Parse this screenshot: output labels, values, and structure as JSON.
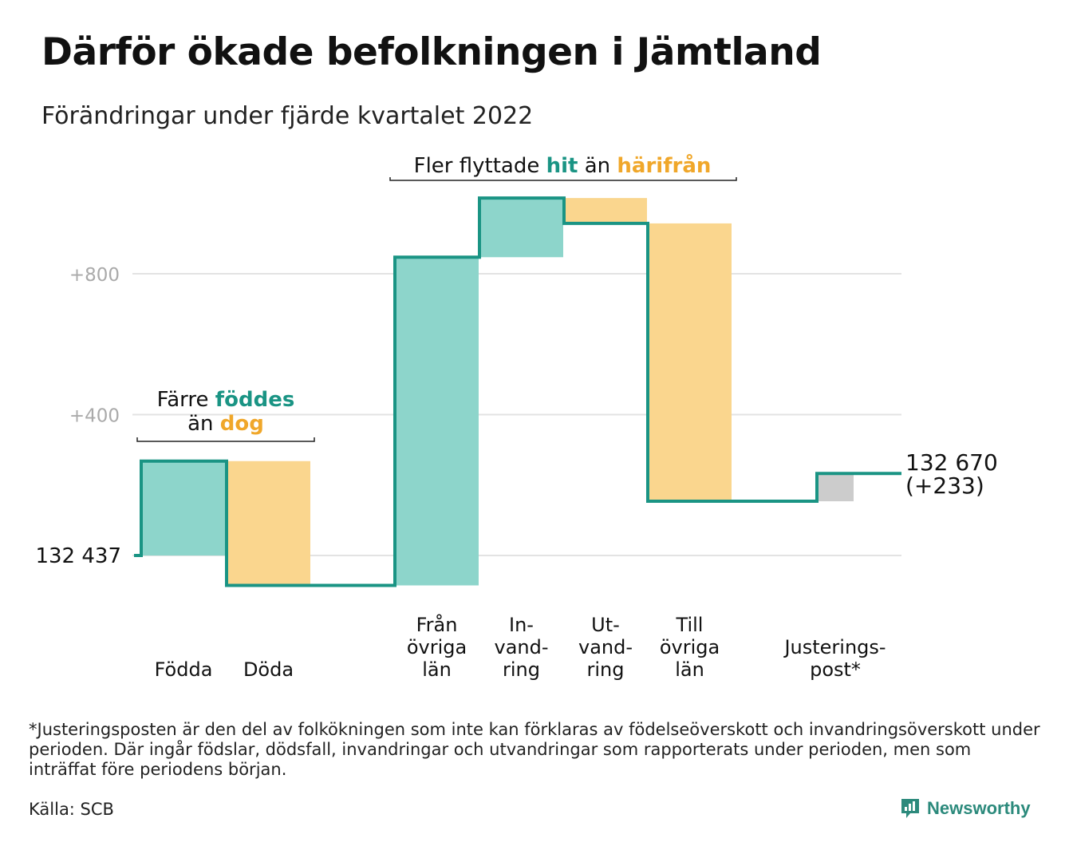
{
  "title": "Därför ökade befolkningen i Jämtland",
  "subtitle": "Förändringar under fjärde kvartalet 2022",
  "footnote": "*Justeringsposten är den del av folkökningen som inte kan förklaras av födelseöverskott och invandringsöverskott under perioden. Där ingår födslar, dödsfall, invandringar och utvandringar som rapporterats under perioden, men som inträffat före periodens början.",
  "source": "Källa: SCB",
  "brand": {
    "name": "Newsworthy",
    "icon": "newsworthy-logo-icon"
  },
  "colors": {
    "increase": "#8dd5cb",
    "decrease": "#fad68e",
    "adjustment": "#cccccc",
    "line": "#1a9484",
    "hit": "#1a9484",
    "harifran": "#f0a72a",
    "grid": "#e3e3e3",
    "tick_text": "#aaaaaa"
  },
  "annotations": {
    "births": {
      "text1": "Färre",
      "hl1": "föddes",
      "text2": "än",
      "hl2": "dog"
    },
    "migration": {
      "text1": "Fler flyttade",
      "hl1": "hit",
      "text2": "än",
      "hl2": "härifrån"
    }
  },
  "chart_data": {
    "type": "waterfall",
    "title": "Därför ökade befolkningen i Jämtland",
    "subtitle": "Förändringar under fjärde kvartalet 2022",
    "start": {
      "value": 132437,
      "label": "132 437"
    },
    "end": {
      "value": 132670,
      "label": "132 670",
      "change_label": "(+233)"
    },
    "y_ticks": [
      {
        "offset": 400,
        "label": "+400"
      },
      {
        "offset": 800,
        "label": "+800"
      }
    ],
    "ylim_offset": [
      -85,
      1020
    ],
    "categories": [
      "Födda",
      "Döda",
      "Från övriga län",
      "In-vand-ring",
      "Ut-vand-ring",
      "Till övriga län",
      "Justerings-post*"
    ],
    "steps": [
      {
        "label_lines": [
          "Födda"
        ],
        "change": 268,
        "kind": "increase"
      },
      {
        "label_lines": [
          "Döda"
        ],
        "change": -353,
        "kind": "decrease"
      },
      {
        "label_lines": [
          "Från",
          "övriga",
          "län"
        ],
        "change": 932,
        "kind": "increase"
      },
      {
        "label_lines": [
          "In-",
          "vand-",
          "ring"
        ],
        "change": 168,
        "kind": "increase"
      },
      {
        "label_lines": [
          "Ut-",
          "vand-",
          "ring"
        ],
        "change": -72,
        "kind": "decrease"
      },
      {
        "label_lines": [
          "Till",
          "övriga",
          "län"
        ],
        "change": -789,
        "kind": "decrease"
      },
      {
        "label_lines": [
          "Justerings-",
          "post*"
        ],
        "change": 79,
        "kind": "adjustment"
      }
    ],
    "grid": true
  }
}
